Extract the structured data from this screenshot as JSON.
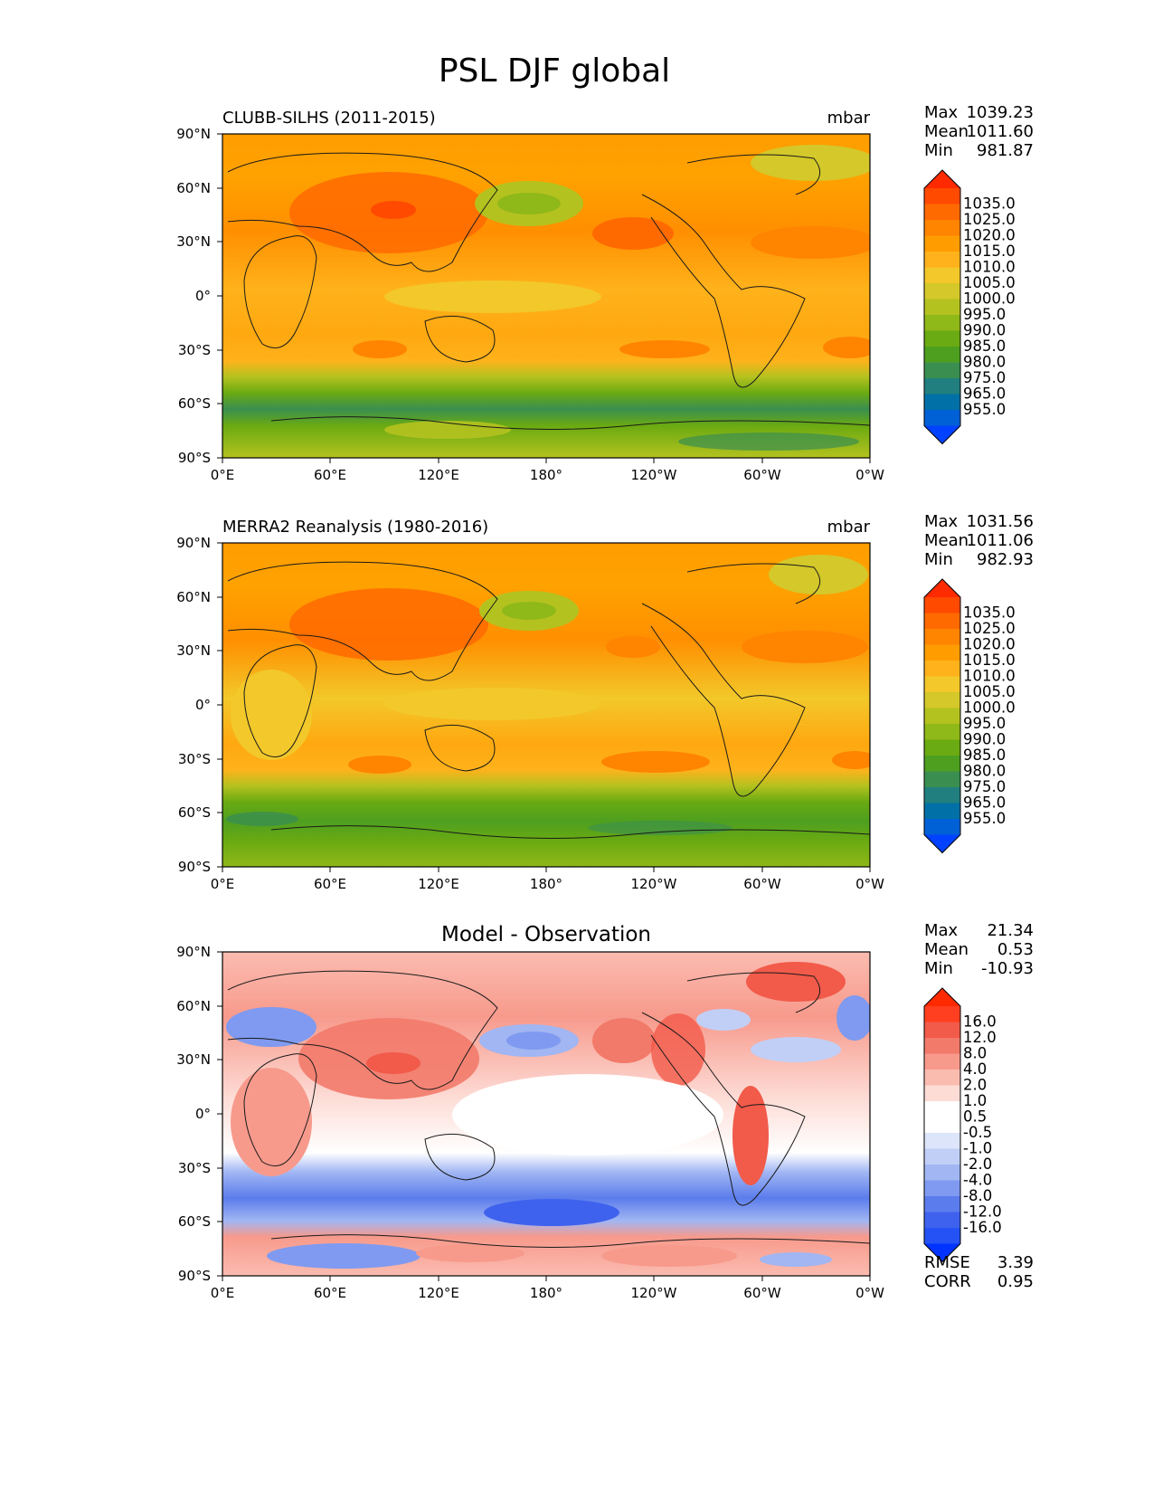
{
  "figure": {
    "title": "PSL DJF global"
  },
  "axes": {
    "lat_labels": [
      "90°N",
      "60°N",
      "30°N",
      "0°",
      "30°S",
      "60°S",
      "90°S"
    ],
    "lon_labels": [
      "0°E",
      "60°E",
      "120°E",
      "180°",
      "120°W",
      "60°W",
      "0°W"
    ]
  },
  "panels": [
    {
      "left_title": "CLUBB-SILHS (2011-2015)",
      "center_title": "",
      "units": "mbar",
      "stats": [
        {
          "label": "Max",
          "value": "1039.23"
        },
        {
          "label": "Mean",
          "value": "1011.60"
        },
        {
          "label": "Min",
          "value": "981.87"
        }
      ],
      "colorbar_labels": [
        "1035.0",
        "1025.0",
        "1020.0",
        "1015.0",
        "1010.0",
        "1005.0",
        "1000.0",
        "995.0",
        "990.0",
        "985.0",
        "980.0",
        "975.0",
        "965.0",
        "955.0"
      ],
      "colorbar_colors": [
        "#ff2a00",
        "#ff4a00",
        "#ff6a00",
        "#ff8400",
        "#ff9d00",
        "#ffb21b",
        "#f2c82a",
        "#d4c82a",
        "#b4c21f",
        "#8fb819",
        "#6aaa12",
        "#4e9f20",
        "#3a8f50",
        "#227f7f",
        "#0070a6",
        "#0060d6",
        "#0042ff"
      ],
      "extra_stats": []
    },
    {
      "left_title": "MERRA2 Reanalysis (1980-2016)",
      "center_title": "",
      "units": "mbar",
      "stats": [
        {
          "label": "Max",
          "value": "1031.56"
        },
        {
          "label": "Mean",
          "value": "1011.06"
        },
        {
          "label": "Min",
          "value": "982.93"
        }
      ],
      "colorbar_labels": [
        "1035.0",
        "1025.0",
        "1020.0",
        "1015.0",
        "1010.0",
        "1005.0",
        "1000.0",
        "995.0",
        "990.0",
        "985.0",
        "980.0",
        "975.0",
        "965.0",
        "955.0"
      ],
      "colorbar_colors": [
        "#ff2a00",
        "#ff4a00",
        "#ff6a00",
        "#ff8400",
        "#ff9d00",
        "#ffb21b",
        "#f2c82a",
        "#d4c82a",
        "#b4c21f",
        "#8fb819",
        "#6aaa12",
        "#4e9f20",
        "#3a8f50",
        "#227f7f",
        "#0070a6",
        "#0060d6",
        "#0042ff"
      ],
      "extra_stats": []
    },
    {
      "left_title": "",
      "center_title": "Model - Observation",
      "units": "",
      "stats": [
        {
          "label": "Max",
          "value": "21.34"
        },
        {
          "label": "Mean",
          "value": "0.53"
        },
        {
          "label": "Min",
          "value": "-10.93"
        }
      ],
      "colorbar_labels": [
        "16.0",
        "12.0",
        "8.0",
        "4.0",
        "2.0",
        "1.0",
        "0.5",
        "-0.5",
        "-1.0",
        "-2.0",
        "-4.0",
        "-8.0",
        "-12.0",
        "-16.0"
      ],
      "colorbar_colors": [
        "#ff2a00",
        "#ff3f1f",
        "#f25a4a",
        "#f27a6a",
        "#f79a8c",
        "#fbbcb0",
        "#fddcd6",
        "#ffffff",
        "#ffffff",
        "#dde5fb",
        "#c1cff7",
        "#a1b6f3",
        "#7f9af0",
        "#5b7cec",
        "#3f62ee",
        "#2452f4",
        "#0033ff"
      ],
      "extra_stats": [
        {
          "label": "RMSE",
          "value": "3.39"
        },
        {
          "label": "CORR",
          "value": "0.95"
        }
      ]
    }
  ]
}
